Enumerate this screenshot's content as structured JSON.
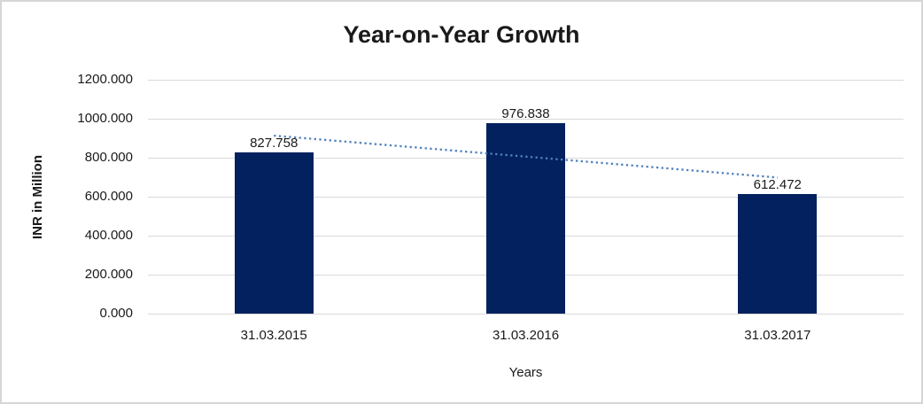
{
  "chart_data": {
    "type": "bar",
    "title": "Year-on-Year Growth",
    "xlabel": "Years",
    "ylabel": "INR in Million",
    "categories": [
      "31.03.2015",
      "31.03.2016",
      "31.03.2017"
    ],
    "values": [
      827.758,
      976.838,
      612.472
    ],
    "data_labels": [
      "827.758",
      "976.838",
      "612.472"
    ],
    "ylim": [
      0,
      1200
    ],
    "ytick_values": [
      0,
      200,
      400,
      600,
      800,
      1000,
      1200
    ],
    "ytick_labels": [
      "0.000",
      "200.000",
      "400.000",
      "600.000",
      "800.000",
      "1000.000",
      "1200.000"
    ],
    "grid": "horizontal",
    "legend_position": "none",
    "bar_color": "#02215E",
    "gridline_color": "#d9d9d9",
    "trendline": {
      "type": "linear",
      "style": "dotted",
      "color": "#4F81BD",
      "endpoint_values": [
        913.3,
        698.1
      ]
    }
  }
}
